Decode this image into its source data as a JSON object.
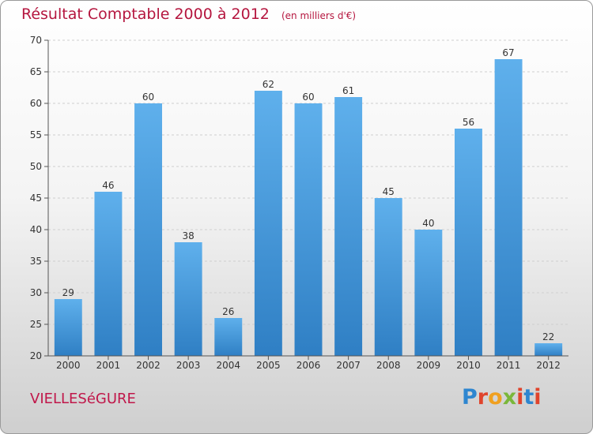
{
  "chart_data": {
    "type": "bar",
    "title": "Résultat Comptable 2000 à 2012",
    "subtitle": "(en milliers d'€)",
    "categories": [
      "2000",
      "2001",
      "2002",
      "2003",
      "2004",
      "2005",
      "2006",
      "2007",
      "2008",
      "2009",
      "2010",
      "2011",
      "2012"
    ],
    "values": [
      29,
      46,
      60,
      38,
      26,
      62,
      60,
      61,
      45,
      40,
      56,
      67,
      22
    ],
    "ylim": [
      20,
      70
    ],
    "yticks": [
      20,
      25,
      30,
      35,
      40,
      45,
      50,
      55,
      60,
      65,
      70
    ],
    "grid": true,
    "colors": {
      "bar_light": "#5fb0ec",
      "bar_dark": "#2f7fc4",
      "title": "#b5163f"
    }
  },
  "footer": {
    "commune": "VIELLESéGURE",
    "logo": "Proxiti"
  }
}
